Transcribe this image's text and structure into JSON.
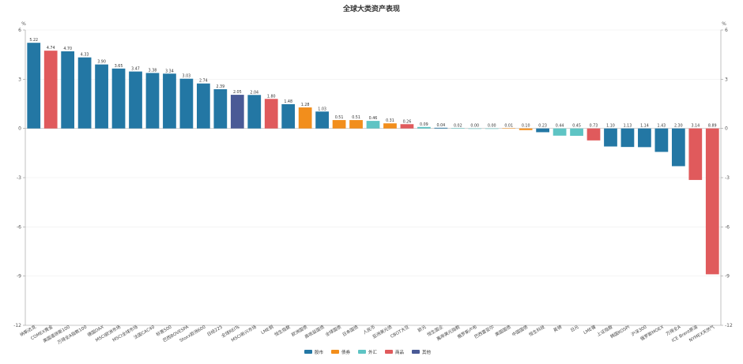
{
  "chart_data": {
    "type": "bar",
    "title": "全球大类资产表现",
    "y_unit_left": "%",
    "y_unit_right": "%",
    "ylim": [
      -12,
      6
    ],
    "yticks": [
      6,
      3,
      0,
      -3,
      -6,
      -9,
      -12
    ],
    "legend": [
      {
        "name": "股市",
        "color": "#2377a4"
      },
      {
        "name": "债券",
        "color": "#f28e1c"
      },
      {
        "name": "外汇",
        "color": "#5ec4c4"
      },
      {
        "name": "商品",
        "color": "#e05a5c"
      },
      {
        "name": "其他",
        "color": "#4a5a96"
      }
    ],
    "legend_position": "bottom-center",
    "categories": [
      "纳斯达克",
      "COMEX黄金",
      "美国道琼斯100",
      "万得全A指数100",
      "德国DAX",
      "MSCI欧洲市场",
      "MSCI全球市场",
      "法国CAC40",
      "标普500",
      "巴西BOVESPA",
      "Stoxx欧洲600",
      "日经225",
      "全球REITs",
      "MSCI新兴市场",
      "LME铜",
      "恒生指数",
      "欧洲国债",
      "高收益国债",
      "全球国债",
      "日本国债",
      "人民币",
      "亚洲美元债",
      "CBOT大豆",
      "欧元",
      "恒生国企",
      "离岸美元指数",
      "俄罗斯卢布",
      "巴西雷亚尔",
      "美国国债",
      "中国国债",
      "恒生科技",
      "英镑",
      "日元",
      "LME镍",
      "上证指数",
      "韩国KOSPI",
      "沪深300",
      "俄罗斯MOEX",
      "万得全A",
      "ICE Brent原油",
      "NYMEX天然气"
    ],
    "values": [
      5.22,
      4.74,
      4.7,
      4.33,
      3.9,
      3.65,
      3.47,
      3.38,
      3.34,
      3.03,
      2.74,
      2.39,
      2.05,
      2.04,
      1.8,
      1.48,
      1.28,
      1.03,
      0.51,
      0.51,
      0.46,
      0.31,
      0.26,
      0.09,
      0.04,
      0.02,
      0.0,
      0.0,
      0.01,
      -0.1,
      -0.23,
      -0.44,
      -0.45,
      -0.73,
      -1.1,
      -1.13,
      -1.14,
      -1.43,
      -2.3,
      -3.14,
      -8.89
    ],
    "labels": [
      "5.22",
      "4.74",
      "4.70",
      "4.33",
      "3.90",
      "3.65",
      "3.47",
      "3.38",
      "3.34",
      "3.03",
      "2.74",
      "2.39",
      "2.05",
      "2.04",
      "1.80",
      "1.48",
      "1.28",
      "1.03",
      "0.51",
      "0.51",
      "0.46",
      "0.31",
      "0.26",
      "0.09",
      "0.04",
      "0.02",
      "0.00",
      "0.00",
      "0.01",
      "0.10",
      "0.23",
      "0.44",
      "0.45",
      "0.73",
      "1.10",
      "1.13",
      "1.14",
      "1.43",
      "2.30",
      "3.14",
      "8.89"
    ],
    "groups": [
      "股市",
      "商品",
      "股市",
      "股市",
      "股市",
      "股市",
      "股市",
      "股市",
      "股市",
      "股市",
      "股市",
      "股市",
      "其他",
      "股市",
      "商品",
      "股市",
      "债券",
      "股市",
      "债券",
      "债券",
      "外汇",
      "债券",
      "商品",
      "外汇",
      "股市",
      "外汇",
      "外汇",
      "外汇",
      "债券",
      "债券",
      "股市",
      "外汇",
      "外汇",
      "商品",
      "股市",
      "股市",
      "股市",
      "股市",
      "股市",
      "商品",
      "商品"
    ],
    "grid": true
  }
}
